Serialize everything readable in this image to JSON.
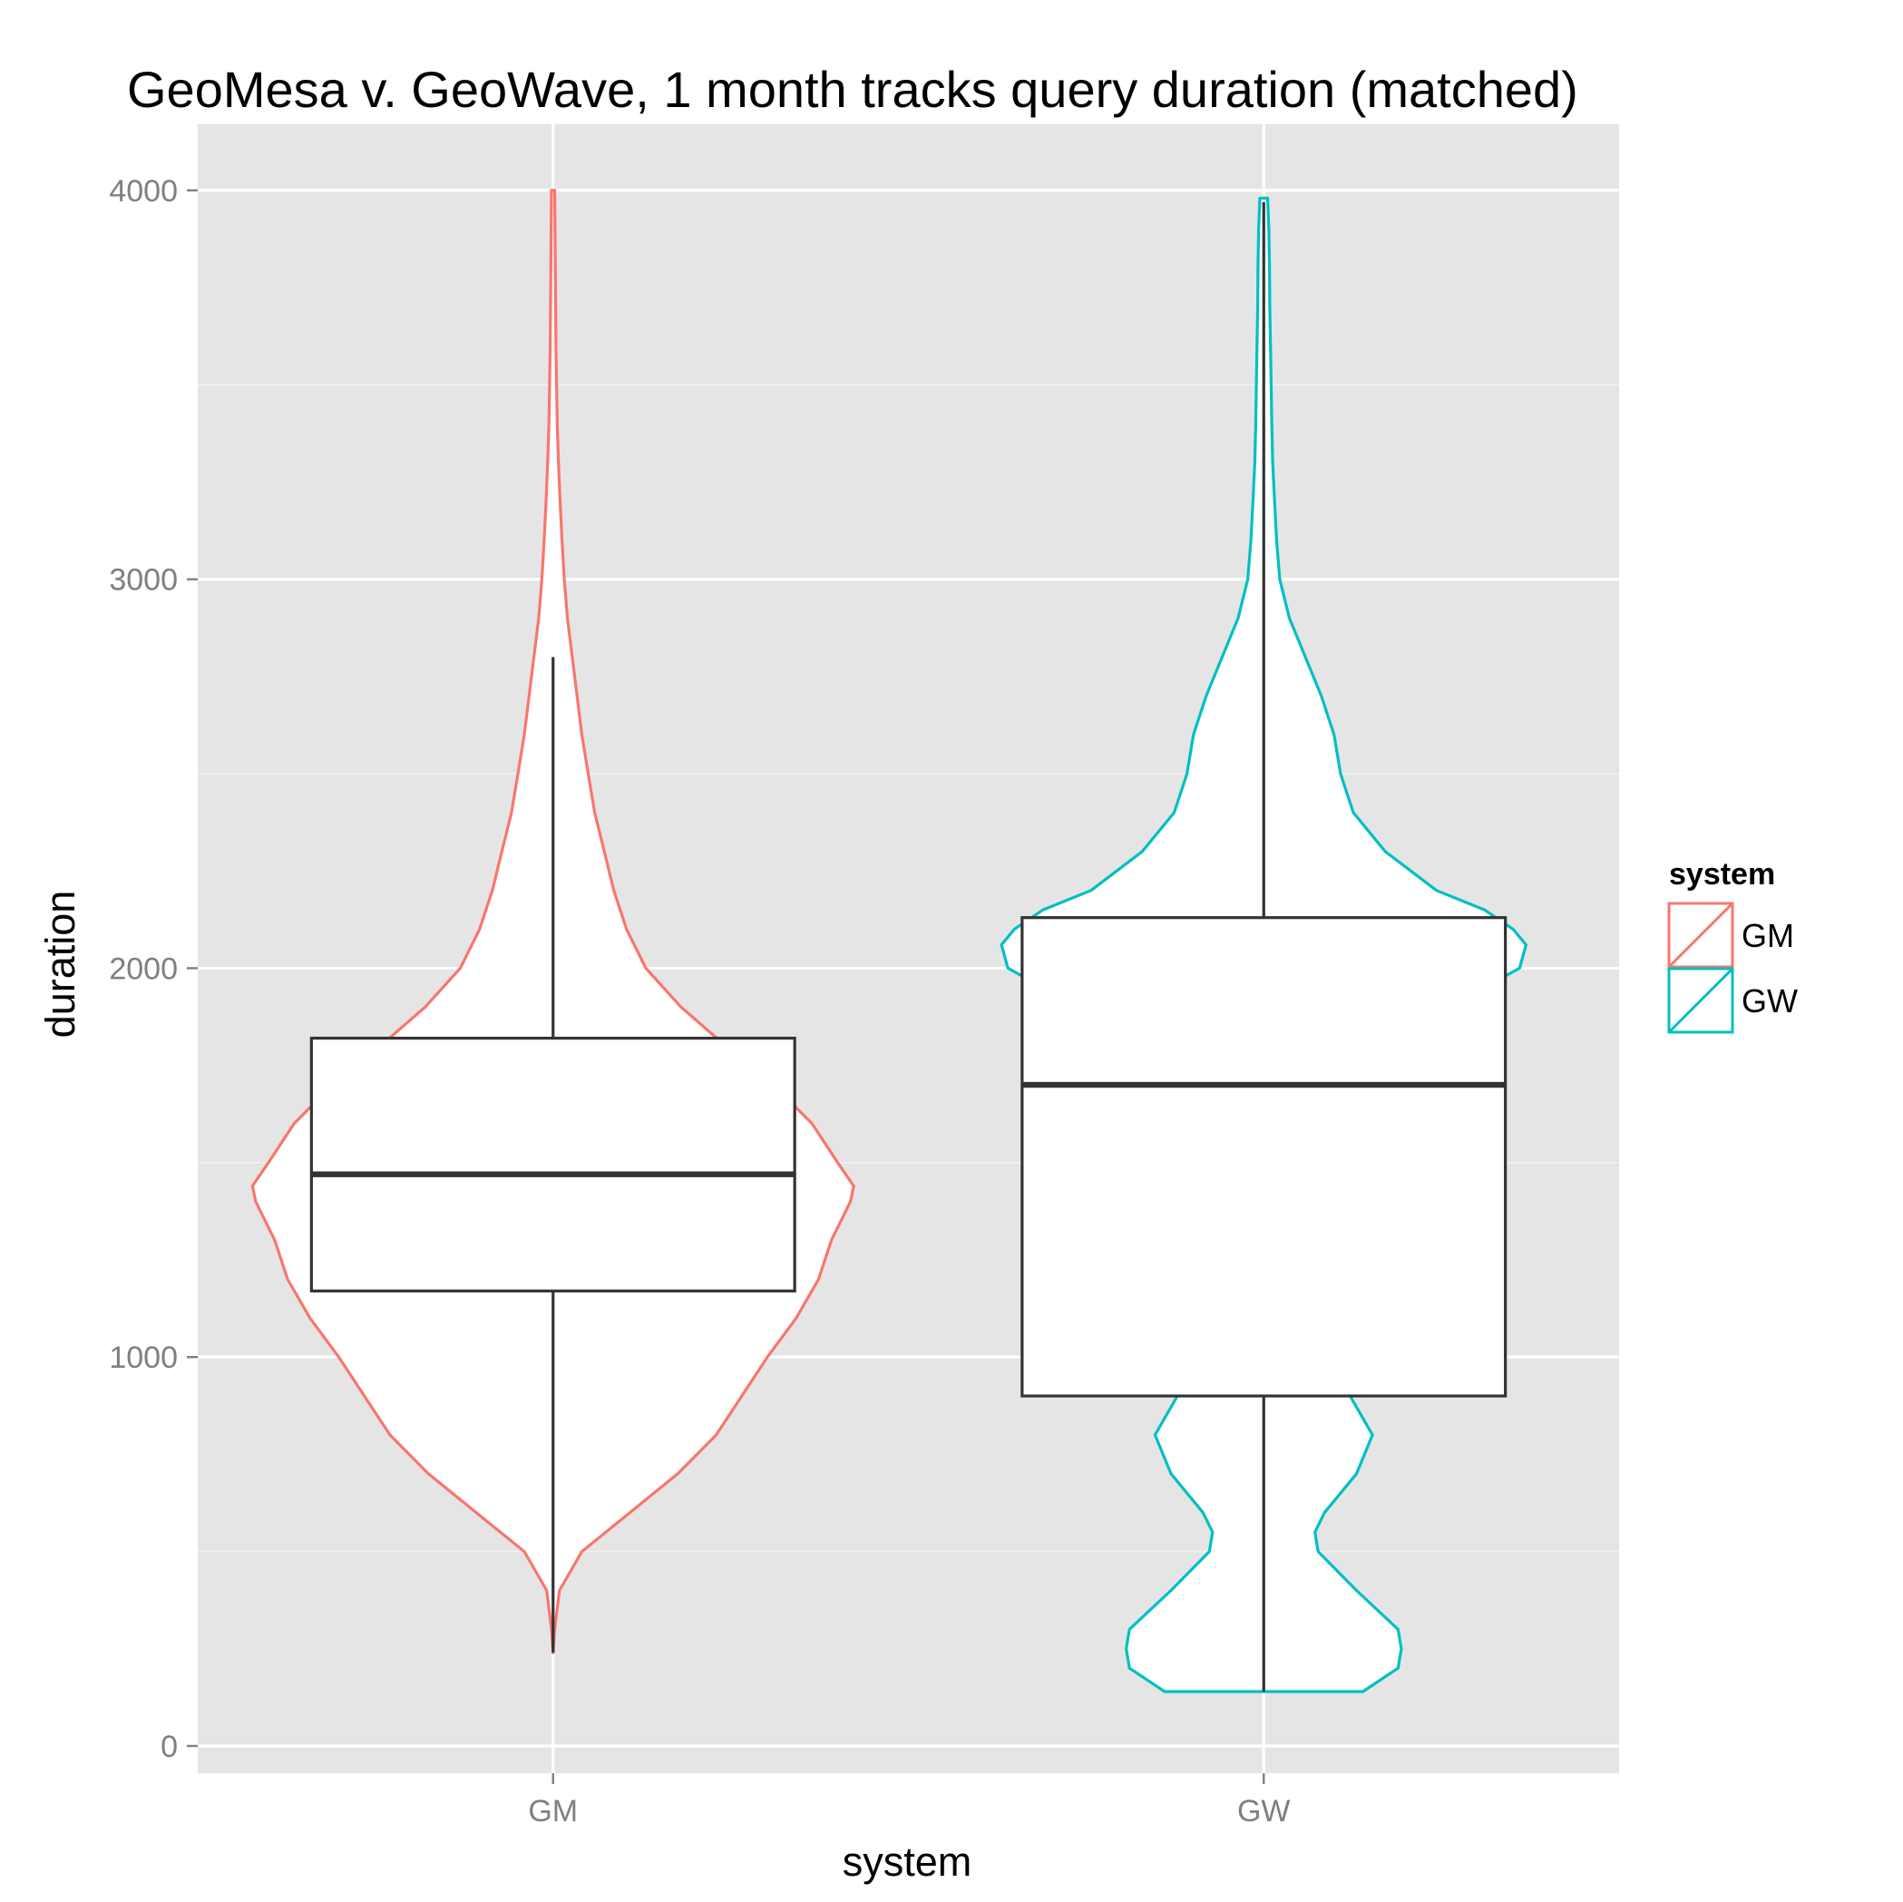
{
  "chart_data": {
    "type": "violin",
    "title": "GeoMesa v. GeoWave, 1 month tracks query duration (matched)",
    "xlabel": "system",
    "ylabel": "duration",
    "categories": [
      "GM",
      "GW"
    ],
    "ylim": [
      -70,
      4170
    ],
    "yticks": [
      0,
      1000,
      2000,
      3000,
      4000
    ],
    "grid": true,
    "legend": {
      "title": "system",
      "position": "right",
      "entries": [
        "GM",
        "GW"
      ]
    },
    "colors": {
      "GM": "#F8766D",
      "GW": "#00BFC4",
      "box": "#333333",
      "panel": "#E5E5E5",
      "grid": "#FFFFFF"
    },
    "series": [
      {
        "name": "GM",
        "box": {
          "lower_whisker": 240,
          "q1": 1170,
          "median": 1470,
          "q3": 1820,
          "upper_whisker": 2800
        },
        "violin": {
          "y": [
            240,
            300,
            400,
            500,
            600,
            700,
            800,
            900,
            1000,
            1100,
            1200,
            1300,
            1350,
            1400,
            1440,
            1500,
            1600,
            1700,
            1800,
            1900,
            2000,
            2100,
            2200,
            2300,
            2400,
            2500,
            2600,
            2700,
            2800,
            2900,
            3000,
            3100,
            3200,
            3300,
            3400,
            3500,
            3600,
            3700,
            3800,
            3900,
            4000
          ],
          "width": [
            0,
            0.005,
            0.02,
            0.09,
            0.24,
            0.39,
            0.51,
            0.59,
            0.67,
            0.76,
            0.83,
            0.87,
            0.9,
            0.93,
            0.94,
            0.89,
            0.81,
            0.69,
            0.54,
            0.4,
            0.29,
            0.23,
            0.19,
            0.16,
            0.13,
            0.11,
            0.09,
            0.075,
            0.06,
            0.045,
            0.035,
            0.028,
            0.022,
            0.017,
            0.013,
            0.011,
            0.009,
            0.008,
            0.007,
            0.006,
            0.005
          ]
        }
      },
      {
        "name": "GW",
        "box": {
          "lower_whisker": 140,
          "q1": 900,
          "median": 1700,
          "q3": 2130,
          "upper_whisker": 3970
        },
        "violin": {
          "y": [
            140,
            200,
            250,
            300,
            400,
            500,
            550,
            600,
            700,
            800,
            900,
            1000,
            1050,
            1100,
            1200,
            1300,
            1370,
            1400,
            1500,
            1600,
            1700,
            1800,
            1900,
            2000,
            2060,
            2100,
            2150,
            2200,
            2300,
            2400,
            2500,
            2600,
            2700,
            2800,
            2900,
            3000,
            3100,
            3200,
            3300,
            3400,
            3500,
            3600,
            3700,
            3800,
            3900,
            3980
          ],
          "width": [
            0.31,
            0.42,
            0.43,
            0.42,
            0.29,
            0.17,
            0.16,
            0.19,
            0.29,
            0.34,
            0.27,
            0.16,
            0.15,
            0.16,
            0.26,
            0.38,
            0.44,
            0.44,
            0.38,
            0.29,
            0.26,
            0.38,
            0.58,
            0.8,
            0.82,
            0.78,
            0.69,
            0.54,
            0.38,
            0.28,
            0.24,
            0.22,
            0.18,
            0.13,
            0.08,
            0.05,
            0.04,
            0.034,
            0.028,
            0.025,
            0.023,
            0.021,
            0.019,
            0.018,
            0.016,
            0.012
          ]
        }
      }
    ]
  }
}
